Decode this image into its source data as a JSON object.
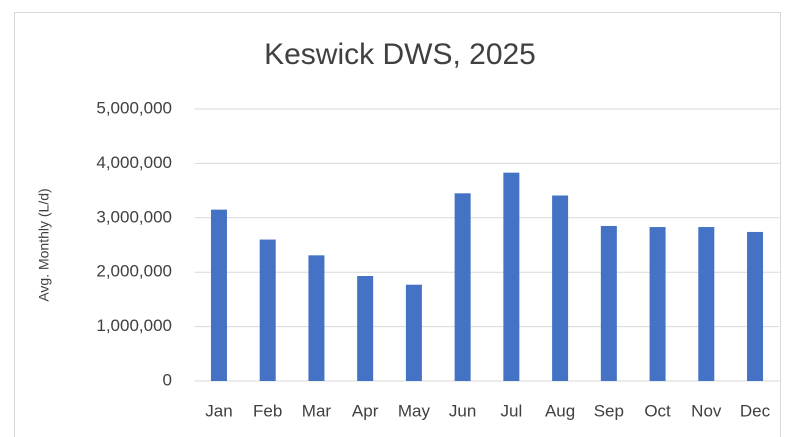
{
  "chart_data": {
    "type": "bar",
    "title": "Keswick DWS, 2025",
    "y_label": "Avg. Monthly (L/d)",
    "categories": [
      "Jan",
      "Feb",
      "Mar",
      "Apr",
      "May",
      "Jun",
      "Jul",
      "Aug",
      "Sep",
      "Oct",
      "Nov",
      "Dec"
    ],
    "values": [
      3150000,
      2600000,
      2310000,
      1930000,
      1770000,
      3450000,
      3830000,
      3410000,
      2850000,
      2830000,
      2830000,
      2740000
    ],
    "color": "#4472c4",
    "ylim": [
      0,
      5000000
    ],
    "yticks": [
      0,
      {
        "value": 1000000,
        "label": "1,000,000"
      },
      {
        "value": 2000000,
        "label": "2,000,000"
      },
      {
        "value": 3000000,
        "label": "3,000,000"
      },
      {
        "value": 4000000,
        "label": "4,000,000"
      },
      {
        "value": 5000000,
        "label": "5,000,000"
      }
    ],
    "grid": true
  }
}
